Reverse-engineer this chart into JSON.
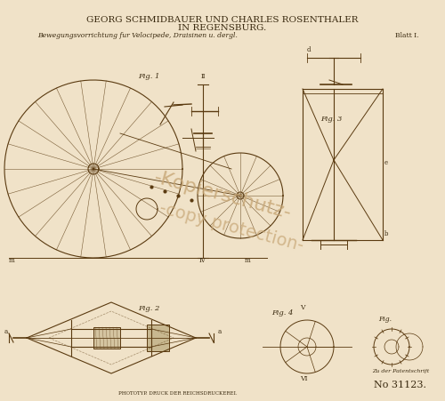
{
  "bg_color": "#f5ead8",
  "border_color": "#c8a878",
  "title_line1": "GEORG SCHMIDBAUER UND CHARLES ROSENTHALER",
  "title_line2": "IN REGENSBURG.",
  "subtitle": "Bewegungsvorrichtung fur Velocipede, Draisinen u. dergl.",
  "blatt": "Blatt I.",
  "patent_no_label": "No 31123.",
  "patent_ref": "Zu der Patentschrift",
  "watermark1": "-Kopierschutz-",
  "watermark2": "-copy protection-",
  "phototype_text": "PHOTOTYP. DRUCK DER REICHSDRUCKEREI.",
  "title_fontsize": 7.5,
  "subtitle_fontsize": 5.5,
  "blatt_fontsize": 5.5,
  "text_color": "#3a2a10",
  "watermark_color": "#c8a878",
  "paper_color": "#f0e2c8",
  "line_color": "#5a3a10",
  "fig_label_color": "#3a2a10"
}
